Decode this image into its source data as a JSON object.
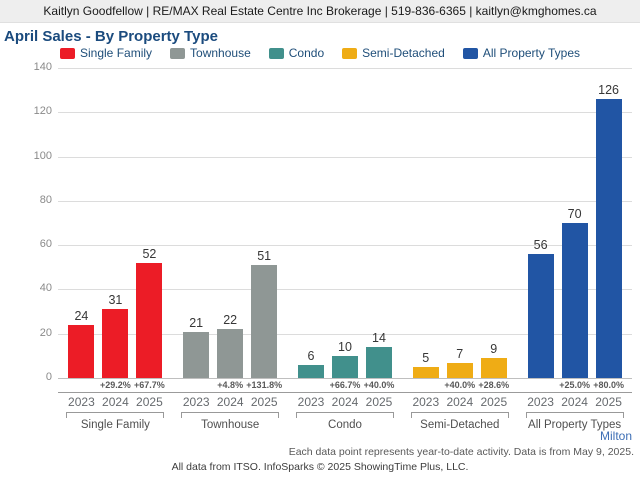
{
  "header": {
    "contact_line": "Kaitlyn Goodfellow | RE/MAX Real Estate Centre Inc Brokerage | 519-836-6365 | kaitlyn@kmghomes.ca"
  },
  "title": "April Sales - By Property Type",
  "chart_data": {
    "type": "bar",
    "title": "April Sales - By Property Type",
    "categories": [
      "2023",
      "2024",
      "2025"
    ],
    "ylim": [
      0,
      140
    ],
    "yticks": [
      0,
      20,
      40,
      60,
      80,
      100,
      120,
      140
    ],
    "grid": true,
    "legend_position": "top",
    "groups": [
      {
        "label": "Single Family",
        "color": "#EC1C26",
        "values": [
          24,
          31,
          52
        ],
        "pct_change": [
          "",
          "+29.2%",
          "+67.7%"
        ]
      },
      {
        "label": "Townhouse",
        "color": "#8F9795",
        "values": [
          21,
          22,
          51
        ],
        "pct_change": [
          "",
          "+4.8%",
          "+131.8%"
        ]
      },
      {
        "label": "Condo",
        "color": "#41908C",
        "values": [
          6,
          10,
          14
        ],
        "pct_change": [
          "",
          "+66.7%",
          "+40.0%"
        ]
      },
      {
        "label": "Semi-Detached",
        "color": "#EFAC15",
        "values": [
          5,
          7,
          9
        ],
        "pct_change": [
          "",
          "+40.0%",
          "+28.6%"
        ]
      },
      {
        "label": "All Property Types",
        "color": "#2155A4",
        "values": [
          56,
          70,
          126
        ],
        "pct_change": [
          "",
          "+25.0%",
          "+80.0%"
        ]
      }
    ]
  },
  "footer": {
    "region": "Milton",
    "note": "Each data point represents year-to-date activity. Data is from May 9, 2025.",
    "attribution": "All data from ITSO. InfoSparks © 2025 ShowingTime Plus, LLC."
  },
  "colors": {
    "title": "#1B4B7E",
    "legend_text": "#1F4E79",
    "region_link": "#3D6EB5",
    "header_background": "#EEEEEE"
  }
}
